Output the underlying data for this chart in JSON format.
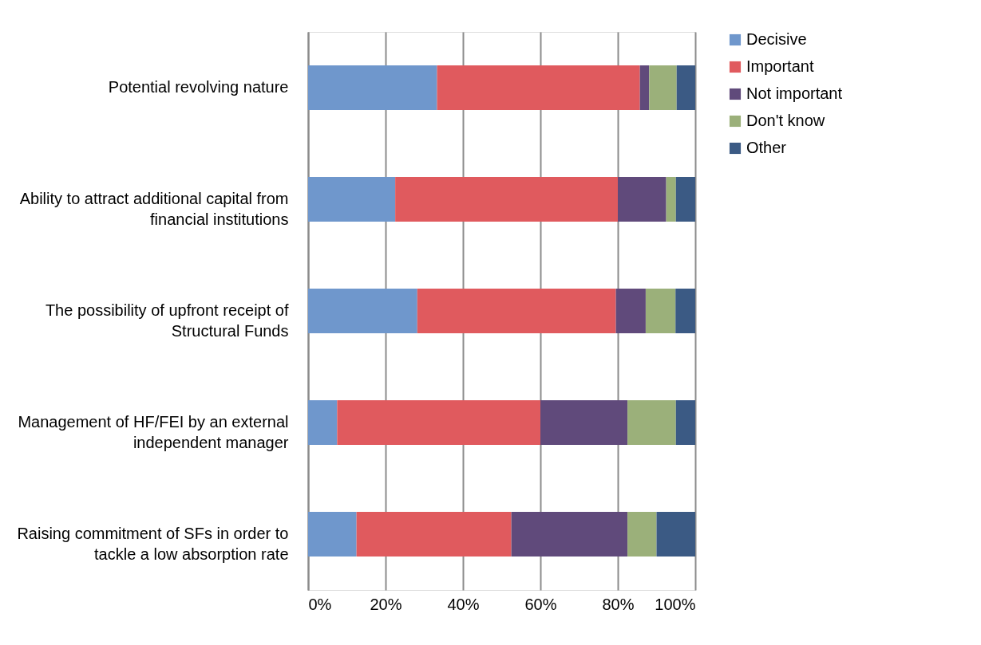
{
  "chart_data": {
    "type": "bar",
    "orientation": "horizontal",
    "stacked": true,
    "categories": [
      "Potential revolving nature",
      "Ability to attract additional capital from financial institutions",
      "The possibility of upfront receipt of Structural Funds",
      "Management of HF/FEI by an external independent manager",
      "Raising commitment of SFs in order to tackle a low absorption rate"
    ],
    "series": [
      {
        "name": "Decisive",
        "color": "#6f97cc",
        "values": [
          33.3,
          22.5,
          28.2,
          7.5,
          12.5
        ]
      },
      {
        "name": "Important",
        "color": "#e05a5e",
        "values": [
          52.4,
          57.5,
          51.3,
          52.5,
          40
        ]
      },
      {
        "name": "Not important",
        "color": "#604a7b",
        "values": [
          2.4,
          12.5,
          7.7,
          22.5,
          30
        ]
      },
      {
        "name": "Don't know",
        "color": "#9bb07a",
        "values": [
          7.1,
          2.5,
          7.7,
          12.5,
          7.5
        ]
      },
      {
        "name": "Other",
        "color": "#3b5a84",
        "values": [
          4.8,
          5,
          5.1,
          5,
          10
        ]
      }
    ],
    "xlim": [
      0,
      100
    ],
    "xticks": [
      {
        "value": 0,
        "label": "0%"
      },
      {
        "value": 20,
        "label": "20%"
      },
      {
        "value": 40,
        "label": "40%"
      },
      {
        "value": 60,
        "label": "60%"
      },
      {
        "value": 80,
        "label": "80%"
      },
      {
        "value": 100,
        "label": "100%"
      }
    ],
    "grid": "x",
    "legend": "right"
  }
}
